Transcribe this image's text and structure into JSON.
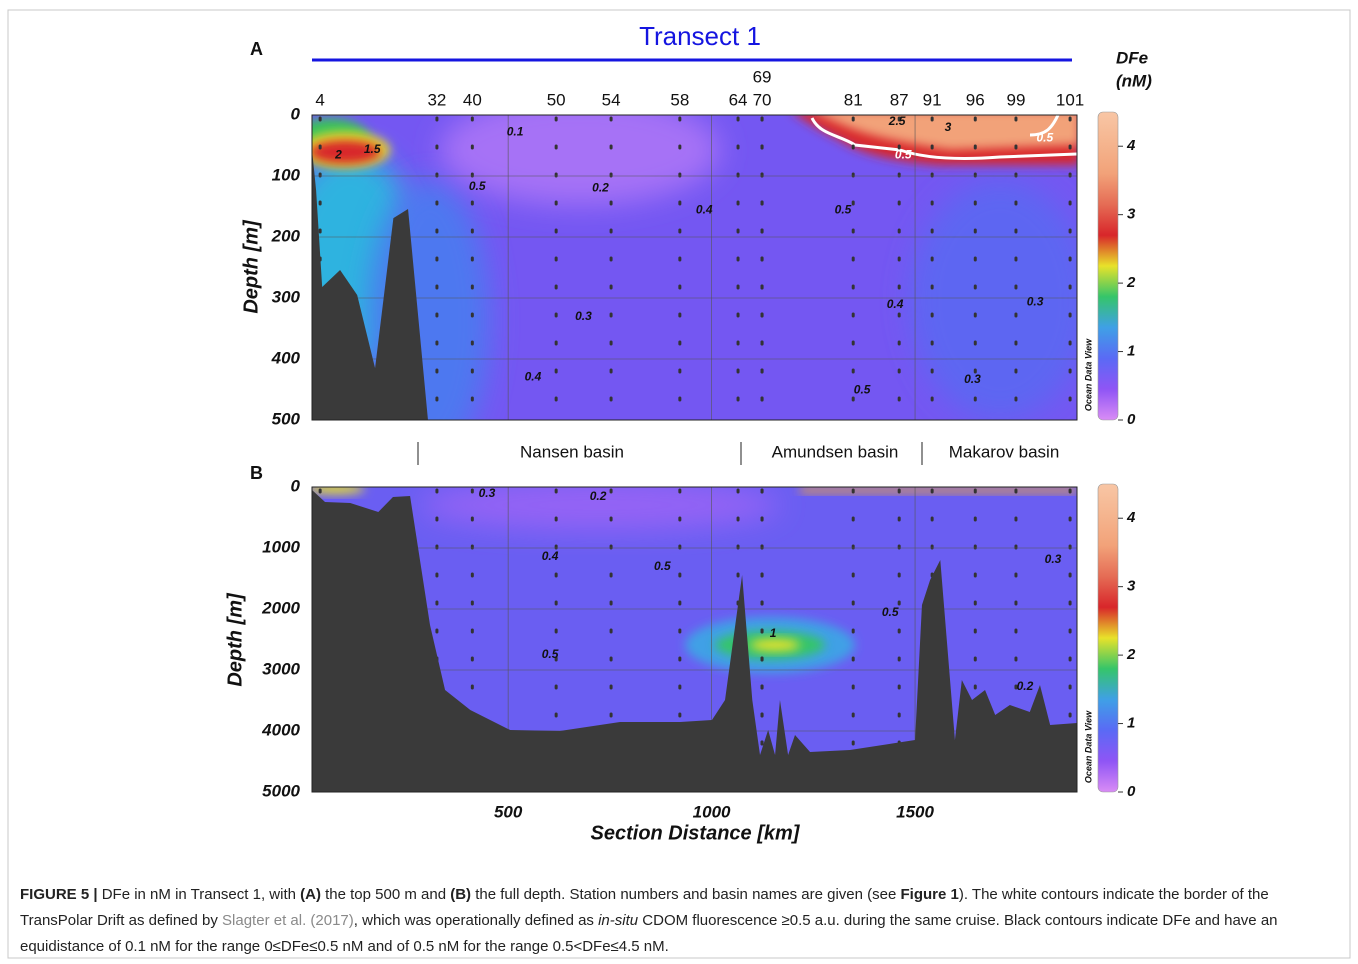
{
  "chart_data": [
    {
      "type": "section",
      "panel": "A",
      "title": "Transect 1",
      "stations": [
        "4",
        "32",
        "40",
        "50",
        "54",
        "58",
        "64",
        "69",
        "70",
        "81",
        "87",
        "91",
        "96",
        "99",
        "101"
      ],
      "station_x": [
        38,
        325,
        412,
        618,
        753,
        922,
        1065,
        1124,
        1124,
        1348,
        1461,
        1542,
        1648,
        1748,
        1881
      ],
      "ylabel": "Depth [m]",
      "ylim": [
        0,
        500
      ],
      "yticks": [
        0,
        100,
        200,
        300,
        400,
        500
      ],
      "xlim": [
        18,
        1898
      ],
      "xticks": [
        500,
        1000,
        1500
      ],
      "xtick_labels": false,
      "grid": true,
      "bathymetry": {
        "x": [
          18,
          28,
          43,
          87,
          129,
          173,
          218,
          254,
          303
        ],
        "depth": [
          57,
          123,
          282,
          254,
          295,
          415,
          169,
          154,
          500
        ]
      },
      "contour_labels": [
        {
          "value": 0.1,
          "x": 517,
          "depth": 28
        },
        {
          "value": 0.5,
          "x": 424,
          "depth": 118
        },
        {
          "value": 0.2,
          "x": 727,
          "depth": 120
        },
        {
          "value": 0.4,
          "x": 982,
          "depth": 156
        },
        {
          "value": 0.5,
          "x": 1323,
          "depth": 156
        },
        {
          "value": 0.3,
          "x": 685,
          "depth": 331
        },
        {
          "value": 0.4,
          "x": 561,
          "depth": 430
        },
        {
          "value": 0.4,
          "x": 1451,
          "depth": 311
        },
        {
          "value": 0.3,
          "x": 1795,
          "depth": 307
        },
        {
          "value": 0.5,
          "x": 1370,
          "depth": 451
        },
        {
          "value": 0.3,
          "x": 1641,
          "depth": 434
        },
        {
          "value": 2,
          "x": 83,
          "depth": 66
        },
        {
          "value": 1.5,
          "x": 166,
          "depth": 57
        },
        {
          "value": 2.5,
          "x": 1456,
          "depth": 11
        },
        {
          "value": 3,
          "x": 1581,
          "depth": 21
        },
        {
          "value": 0.5,
          "x": 1819,
          "depth": 38,
          "color": "#ffffff"
        },
        {
          "value": 0.5,
          "x": 1471,
          "depth": 66,
          "color": "#ffffff"
        }
      ],
      "basins": [
        "Nansen basin",
        "Amundsen basin",
        "Makarov basin"
      ],
      "colorbar": {
        "label": [
          "DFe",
          "(nM)"
        ],
        "lim": [
          0,
          4.5
        ],
        "ticks": [
          0,
          1,
          2,
          3,
          4
        ],
        "colors": [
          "#d98cf5",
          "#8f55f5",
          "#5a6af5",
          "#3fa0e6",
          "#35c56a",
          "#e8e22a",
          "#d8262a",
          "#e56c55",
          "#f2a279",
          "#f5b58f",
          "#f8c6a5"
        ]
      },
      "watermark": "Ocean Data View"
    },
    {
      "type": "section",
      "panel": "B",
      "ylabel": "Depth [m]",
      "ylim": [
        0,
        5000
      ],
      "yticks": [
        0,
        1000,
        2000,
        3000,
        4000,
        5000
      ],
      "xlabel": "Section Distance [km]",
      "xlim": [
        18,
        1898
      ],
      "xticks": [
        500,
        1000,
        1500
      ],
      "xtick_labels": true,
      "grid": true,
      "bathymetry": {
        "x": [
          18,
          50,
          112,
          181,
          217,
          259,
          308,
          345,
          407,
          505,
          627,
          775,
          923,
          1001,
          1033,
          1075,
          1100,
          1119,
          1139,
          1156,
          1168,
          1188,
          1205,
          1242,
          1340,
          1500,
          1517,
          1537,
          1562,
          1574,
          1598,
          1615,
          1640,
          1672,
          1697,
          1733,
          1782,
          1807,
          1832,
          1898
        ],
        "depth": [
          49,
          246,
          262,
          410,
          164,
          148,
          2262,
          3328,
          3656,
          3984,
          4000,
          3852,
          3852,
          3820,
          3492,
          1443,
          3492,
          4393,
          3984,
          4393,
          3492,
          4393,
          4066,
          4344,
          4311,
          4148,
          1934,
          1525,
          1197,
          2180,
          4148,
          3164,
          3492,
          3328,
          3738,
          3574,
          3689,
          3246,
          3902,
          3869
        ]
      },
      "contour_labels": [
        {
          "value": 0.3,
          "x": 448,
          "depth": 115
        },
        {
          "value": 0.2,
          "x": 721,
          "depth": 164
        },
        {
          "value": 0.4,
          "x": 603,
          "depth": 1148
        },
        {
          "value": 0.5,
          "x": 879,
          "depth": 1311
        },
        {
          "value": 0.5,
          "x": 603,
          "depth": 2754
        },
        {
          "value": 1,
          "x": 1151,
          "depth": 2410
        },
        {
          "value": 0.5,
          "x": 1439,
          "depth": 2066
        },
        {
          "value": 0.3,
          "x": 1839,
          "depth": 1197
        },
        {
          "value": 0.2,
          "x": 1770,
          "depth": 3279
        }
      ],
      "colorbar": {
        "lim": [
          0,
          4.5
        ],
        "ticks": [
          0,
          1,
          2,
          3,
          4
        ],
        "colors": [
          "#d98cf5",
          "#8f55f5",
          "#5a6af5",
          "#3fa0e6",
          "#35c56a",
          "#e8e22a",
          "#d8262a",
          "#e56c55",
          "#f2a279",
          "#f5b58f",
          "#f8c6a5"
        ]
      },
      "watermark": "Ocean Data View"
    }
  ],
  "caption": [
    {
      "text": "FIGURE 5 |",
      "style": "bold"
    },
    {
      "text": " DFe in nM in Transect 1, with ",
      "style": "normal"
    },
    {
      "text": "(A)",
      "style": "bold"
    },
    {
      "text": " the top 500 m and ",
      "style": "normal"
    },
    {
      "text": "(B)",
      "style": "bold"
    },
    {
      "text": " the full depth. Station numbers and basin names are given (see ",
      "style": "normal"
    },
    {
      "text": "Figure 1",
      "style": "bold"
    },
    {
      "text": "). The white contours indicate the border of the TransPolar Drift as defined by ",
      "style": "normal"
    },
    {
      "text": "Slagter et al. (2017)",
      "style": "link"
    },
    {
      "text": ", which was operationally defined as ",
      "style": "normal"
    },
    {
      "text": "in-situ",
      "style": "italic"
    },
    {
      "text": " CDOM fluorescence ≥0.5 a.u. during the same cruise. Black contours indicate DFe and have an equidistance of 0.1 nM for the range 0≤DFe≤0.5 nM and of 0.5 nM for the range 0.5<DFe≤4.5 nM.",
      "style": "normal"
    }
  ]
}
